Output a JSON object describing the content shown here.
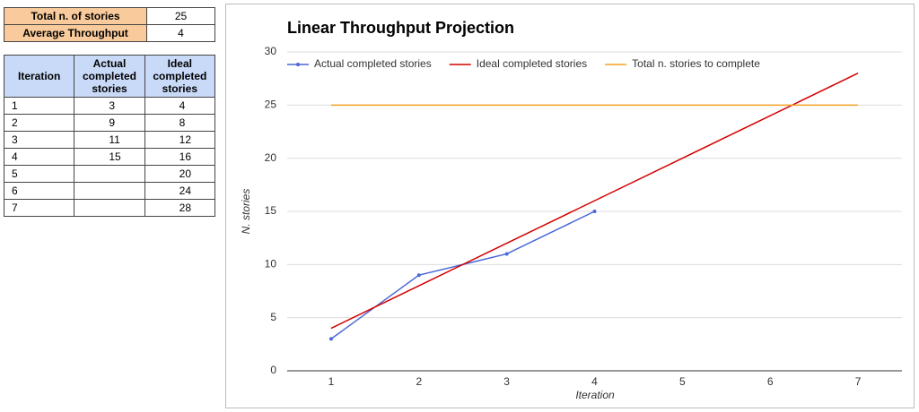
{
  "summary": {
    "rows": [
      {
        "label": "Total n. of stories",
        "value": 25
      },
      {
        "label": "Average Throughput",
        "value": 4
      }
    ]
  },
  "table": {
    "headers": [
      "Iteration",
      "Actual completed stories",
      "Ideal completed stories"
    ],
    "rows": [
      {
        "iteration": 1,
        "actual": 3,
        "ideal": 4
      },
      {
        "iteration": 2,
        "actual": 9,
        "ideal": 8
      },
      {
        "iteration": 3,
        "actual": 11,
        "ideal": 12
      },
      {
        "iteration": 4,
        "actual": 15,
        "ideal": 16
      },
      {
        "iteration": 5,
        "ideal": 20
      },
      {
        "iteration": 6,
        "ideal": 24
      },
      {
        "iteration": 7,
        "ideal": 28
      }
    ]
  },
  "chart_data": {
    "type": "line",
    "title": "Linear Throughput Projection",
    "xlabel": "Iteration",
    "ylabel": "N. stories",
    "x": [
      1,
      2,
      3,
      4,
      5,
      6,
      7
    ],
    "series": [
      {
        "name": "Actual completed stories",
        "color": "#4a67d6",
        "marker": true,
        "values": [
          3,
          9,
          11,
          15,
          null,
          null,
          null
        ]
      },
      {
        "name": "Ideal completed stories",
        "color": "#d40000",
        "marker": false,
        "values": [
          4,
          8,
          12,
          16,
          20,
          24,
          28
        ]
      },
      {
        "name": "Total n. stories to complete",
        "color": "#f4a123",
        "marker": false,
        "values": [
          25,
          25,
          25,
          25,
          25,
          25,
          25
        ]
      }
    ],
    "xlim": [
      0.5,
      7.5
    ],
    "xticks": [
      1,
      2,
      3,
      4,
      5,
      6,
      7
    ],
    "ylim": [
      0,
      30
    ],
    "yticks": [
      0,
      5,
      10,
      15,
      20,
      25,
      30
    ],
    "grid": true,
    "legend": "top"
  }
}
